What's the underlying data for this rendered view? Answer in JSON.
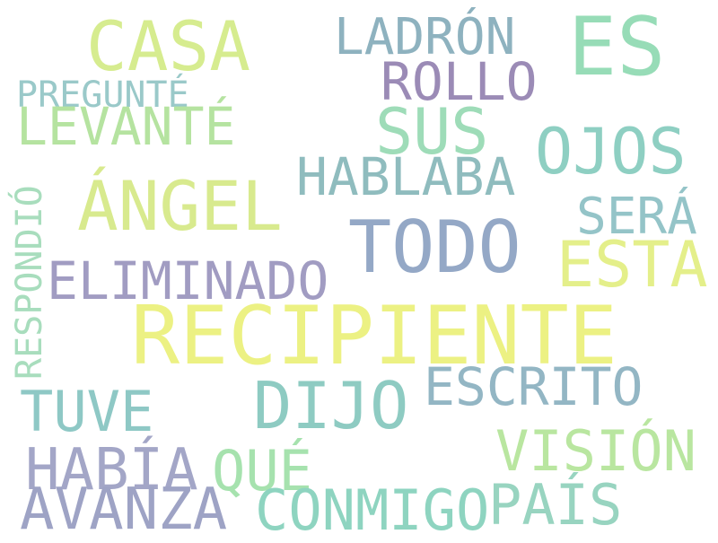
{
  "words": [
    {
      "text": "CASA",
      "color": "#d6ec8f"
    },
    {
      "text": "LADRÓN",
      "color": "#8eb2bf"
    },
    {
      "text": "ES",
      "color": "#97dcb7"
    },
    {
      "text": "ROLLO",
      "color": "#9b8bb6"
    },
    {
      "text": "PREGUNTÉ",
      "color": "#9ac9c9"
    },
    {
      "text": "LEVANTÉ",
      "color": "#b5e3a0"
    },
    {
      "text": "SUS",
      "color": "#9edcb8"
    },
    {
      "text": "OJOS",
      "color": "#8ecfc2"
    },
    {
      "text": "HABLABA",
      "color": "#8fbcbe"
    },
    {
      "text": "RESPONDIÓ",
      "color": "#a8ddbd"
    },
    {
      "text": "ÁNGEL",
      "color": "#d8ea8e"
    },
    {
      "text": "SERÁ",
      "color": "#94c4c8"
    },
    {
      "text": "TODO",
      "color": "#94a8c6"
    },
    {
      "text": "ESTA",
      "color": "#e4ef8a"
    },
    {
      "text": "ELIMINADO",
      "color": "#a19cc2"
    },
    {
      "text": "RECIPIENTE",
      "color": "#ecf183"
    },
    {
      "text": "ESCRITO",
      "color": "#93b6c4"
    },
    {
      "text": "DIJO",
      "color": "#8ecbc2"
    },
    {
      "text": "TUVE",
      "color": "#8ec8c5"
    },
    {
      "text": "VISIÓN",
      "color": "#b9e6a0"
    },
    {
      "text": "HABÍA",
      "color": "#a3a6c7"
    },
    {
      "text": "QUÉ",
      "color": "#a6e2ae"
    },
    {
      "text": "AVANZA",
      "color": "#9ea3c5"
    },
    {
      "text": "CONMIGO",
      "color": "#8ed4c0"
    },
    {
      "text": "PAÍS",
      "color": "#98d4c0"
    }
  ]
}
